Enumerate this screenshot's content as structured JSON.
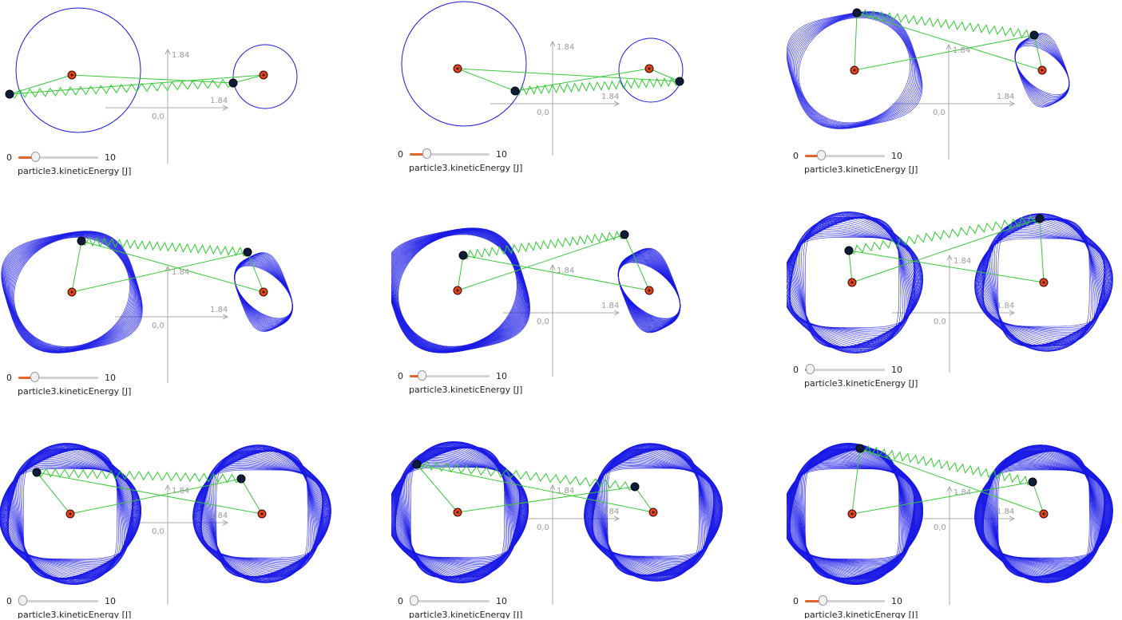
{
  "colors": {
    "orbit": "#1a1ae6",
    "spring": "#2ccf2c",
    "rod": "#39c839",
    "axis": "#a8a8a8",
    "pivot_fill": "#e0431a",
    "particle_fill": "#0c1c3a",
    "slider_fill": "#e2632c"
  },
  "panels": [
    {
      "axis_x_label": "1.84",
      "axis_y_label": "1.84",
      "origin_label": "0,0",
      "slider_min": "0",
      "slider_max": "10",
      "slider_value": 2.1,
      "variable_label": "particle3.kineticEnergy [J]",
      "density": 1,
      "stage": 1
    },
    {
      "axis_x_label": "1.84",
      "axis_y_label": "1.84",
      "origin_label": "0,0",
      "slider_min": "0",
      "slider_max": "10",
      "slider_value": 2.1,
      "variable_label": "particle3.kineticEnergy [J]",
      "density": 2,
      "stage": 2
    },
    {
      "axis_x_label": "1.84",
      "axis_y_label": "1.84",
      "origin_label": "0,0",
      "slider_min": "0",
      "slider_max": "10",
      "slider_value": 2.0,
      "variable_label": "particle3.kineticEnergy [J]",
      "density": 14,
      "stage": 3
    },
    {
      "axis_x_label": "1.84",
      "axis_y_label": "1.84",
      "origin_label": "0,0",
      "slider_min": "0",
      "slider_max": "10",
      "slider_value": 2.0,
      "variable_label": "particle3.kineticEnergy [J]",
      "density": 22,
      "stage": 4
    },
    {
      "axis_x_label": "1.84",
      "axis_y_label": "1.84",
      "origin_label": "0,0",
      "slider_min": "0",
      "slider_max": "10",
      "slider_value": 1.5,
      "variable_label": "particle3.kineticEnergy [J]",
      "density": 32,
      "stage": 5
    },
    {
      "axis_x_label": "1.84",
      "axis_y_label": "1.84",
      "origin_label": "0,0",
      "slider_min": "0",
      "slider_max": "10",
      "slider_value": 0.6,
      "variable_label": "particle3.kineticEnergy [J]",
      "density": 44,
      "stage": 6
    },
    {
      "axis_x_label": "1.84",
      "axis_y_label": "1.84",
      "origin_label": "0,0",
      "slider_min": "0",
      "slider_max": "10",
      "slider_value": 0.5,
      "variable_label": "particle3.kineticEnergy [J]",
      "density": 56,
      "stage": 7
    },
    {
      "axis_x_label": "1.84",
      "axis_y_label": "1.84",
      "origin_label": "0,0",
      "slider_min": "0",
      "slider_max": "10",
      "slider_value": 0.5,
      "variable_label": "particle3.kineticEnergy [J]",
      "density": 64,
      "stage": 8
    },
    {
      "axis_x_label": "1.84",
      "axis_y_label": "1.84",
      "origin_label": "0,0",
      "slider_min": "0",
      "slider_max": "10",
      "slider_value": 2.2,
      "variable_label": "particle3.kineticEnergy [J]",
      "density": 80,
      "stage": 9
    }
  ]
}
